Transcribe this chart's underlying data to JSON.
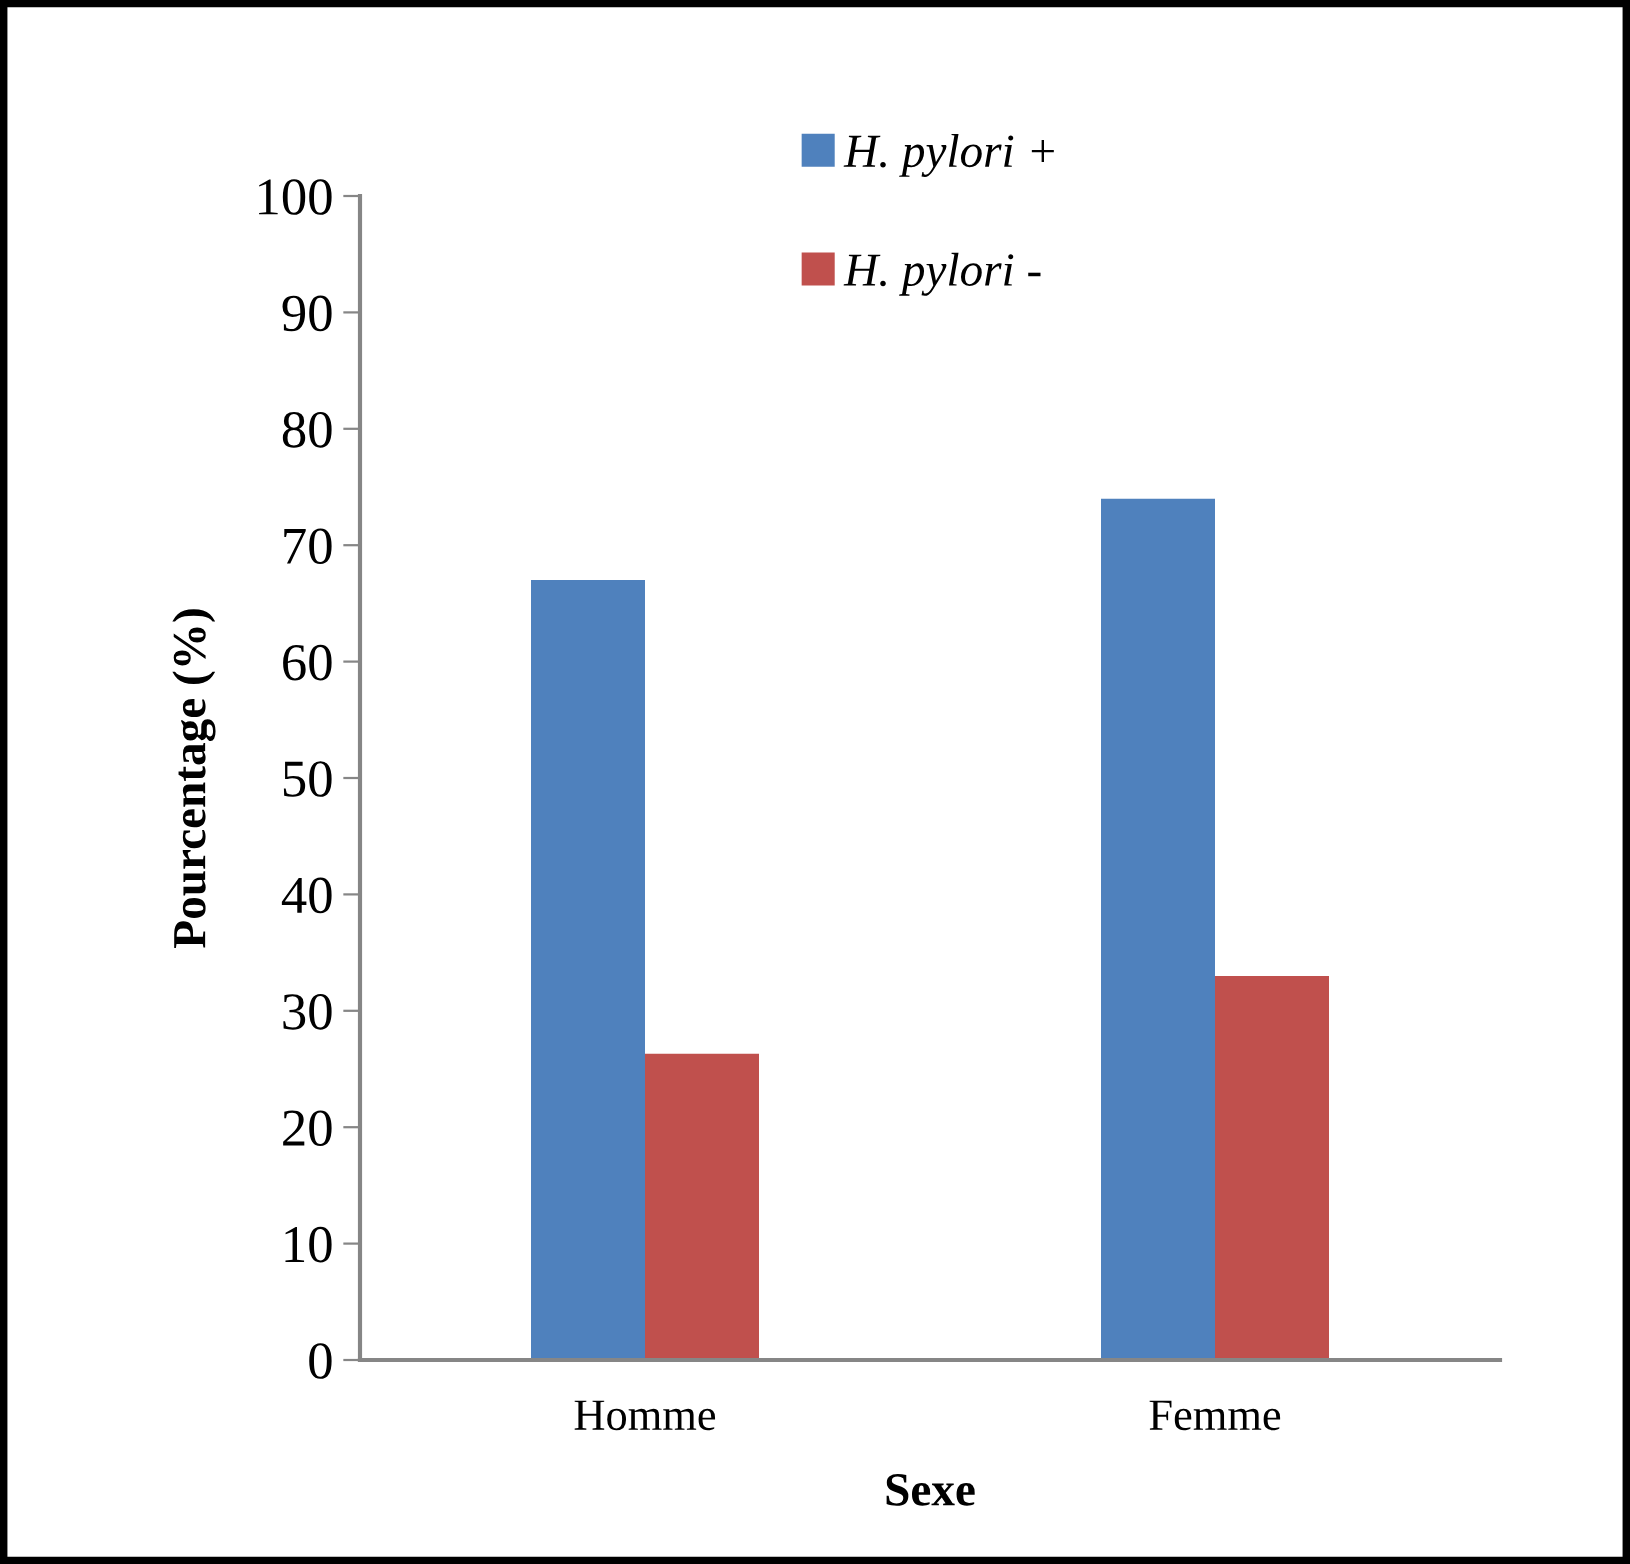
{
  "chart_data": {
    "type": "bar",
    "xlabel": "Sexe",
    "ylabel": "Pourcentage (%)",
    "categories": [
      "Homme",
      "Femme"
    ],
    "series": [
      {
        "name": "H. pylori +",
        "color": "#4f81bd",
        "values": [
          67,
          74
        ]
      },
      {
        "name": "H. pylori -",
        "color": "#c0504d",
        "values": [
          26.3,
          33
        ]
      }
    ],
    "ylim": [
      0,
      100
    ],
    "yticks": [
      0,
      10,
      20,
      30,
      40,
      50,
      60,
      70,
      80,
      90,
      100
    ],
    "grid": false,
    "legend": "top"
  }
}
